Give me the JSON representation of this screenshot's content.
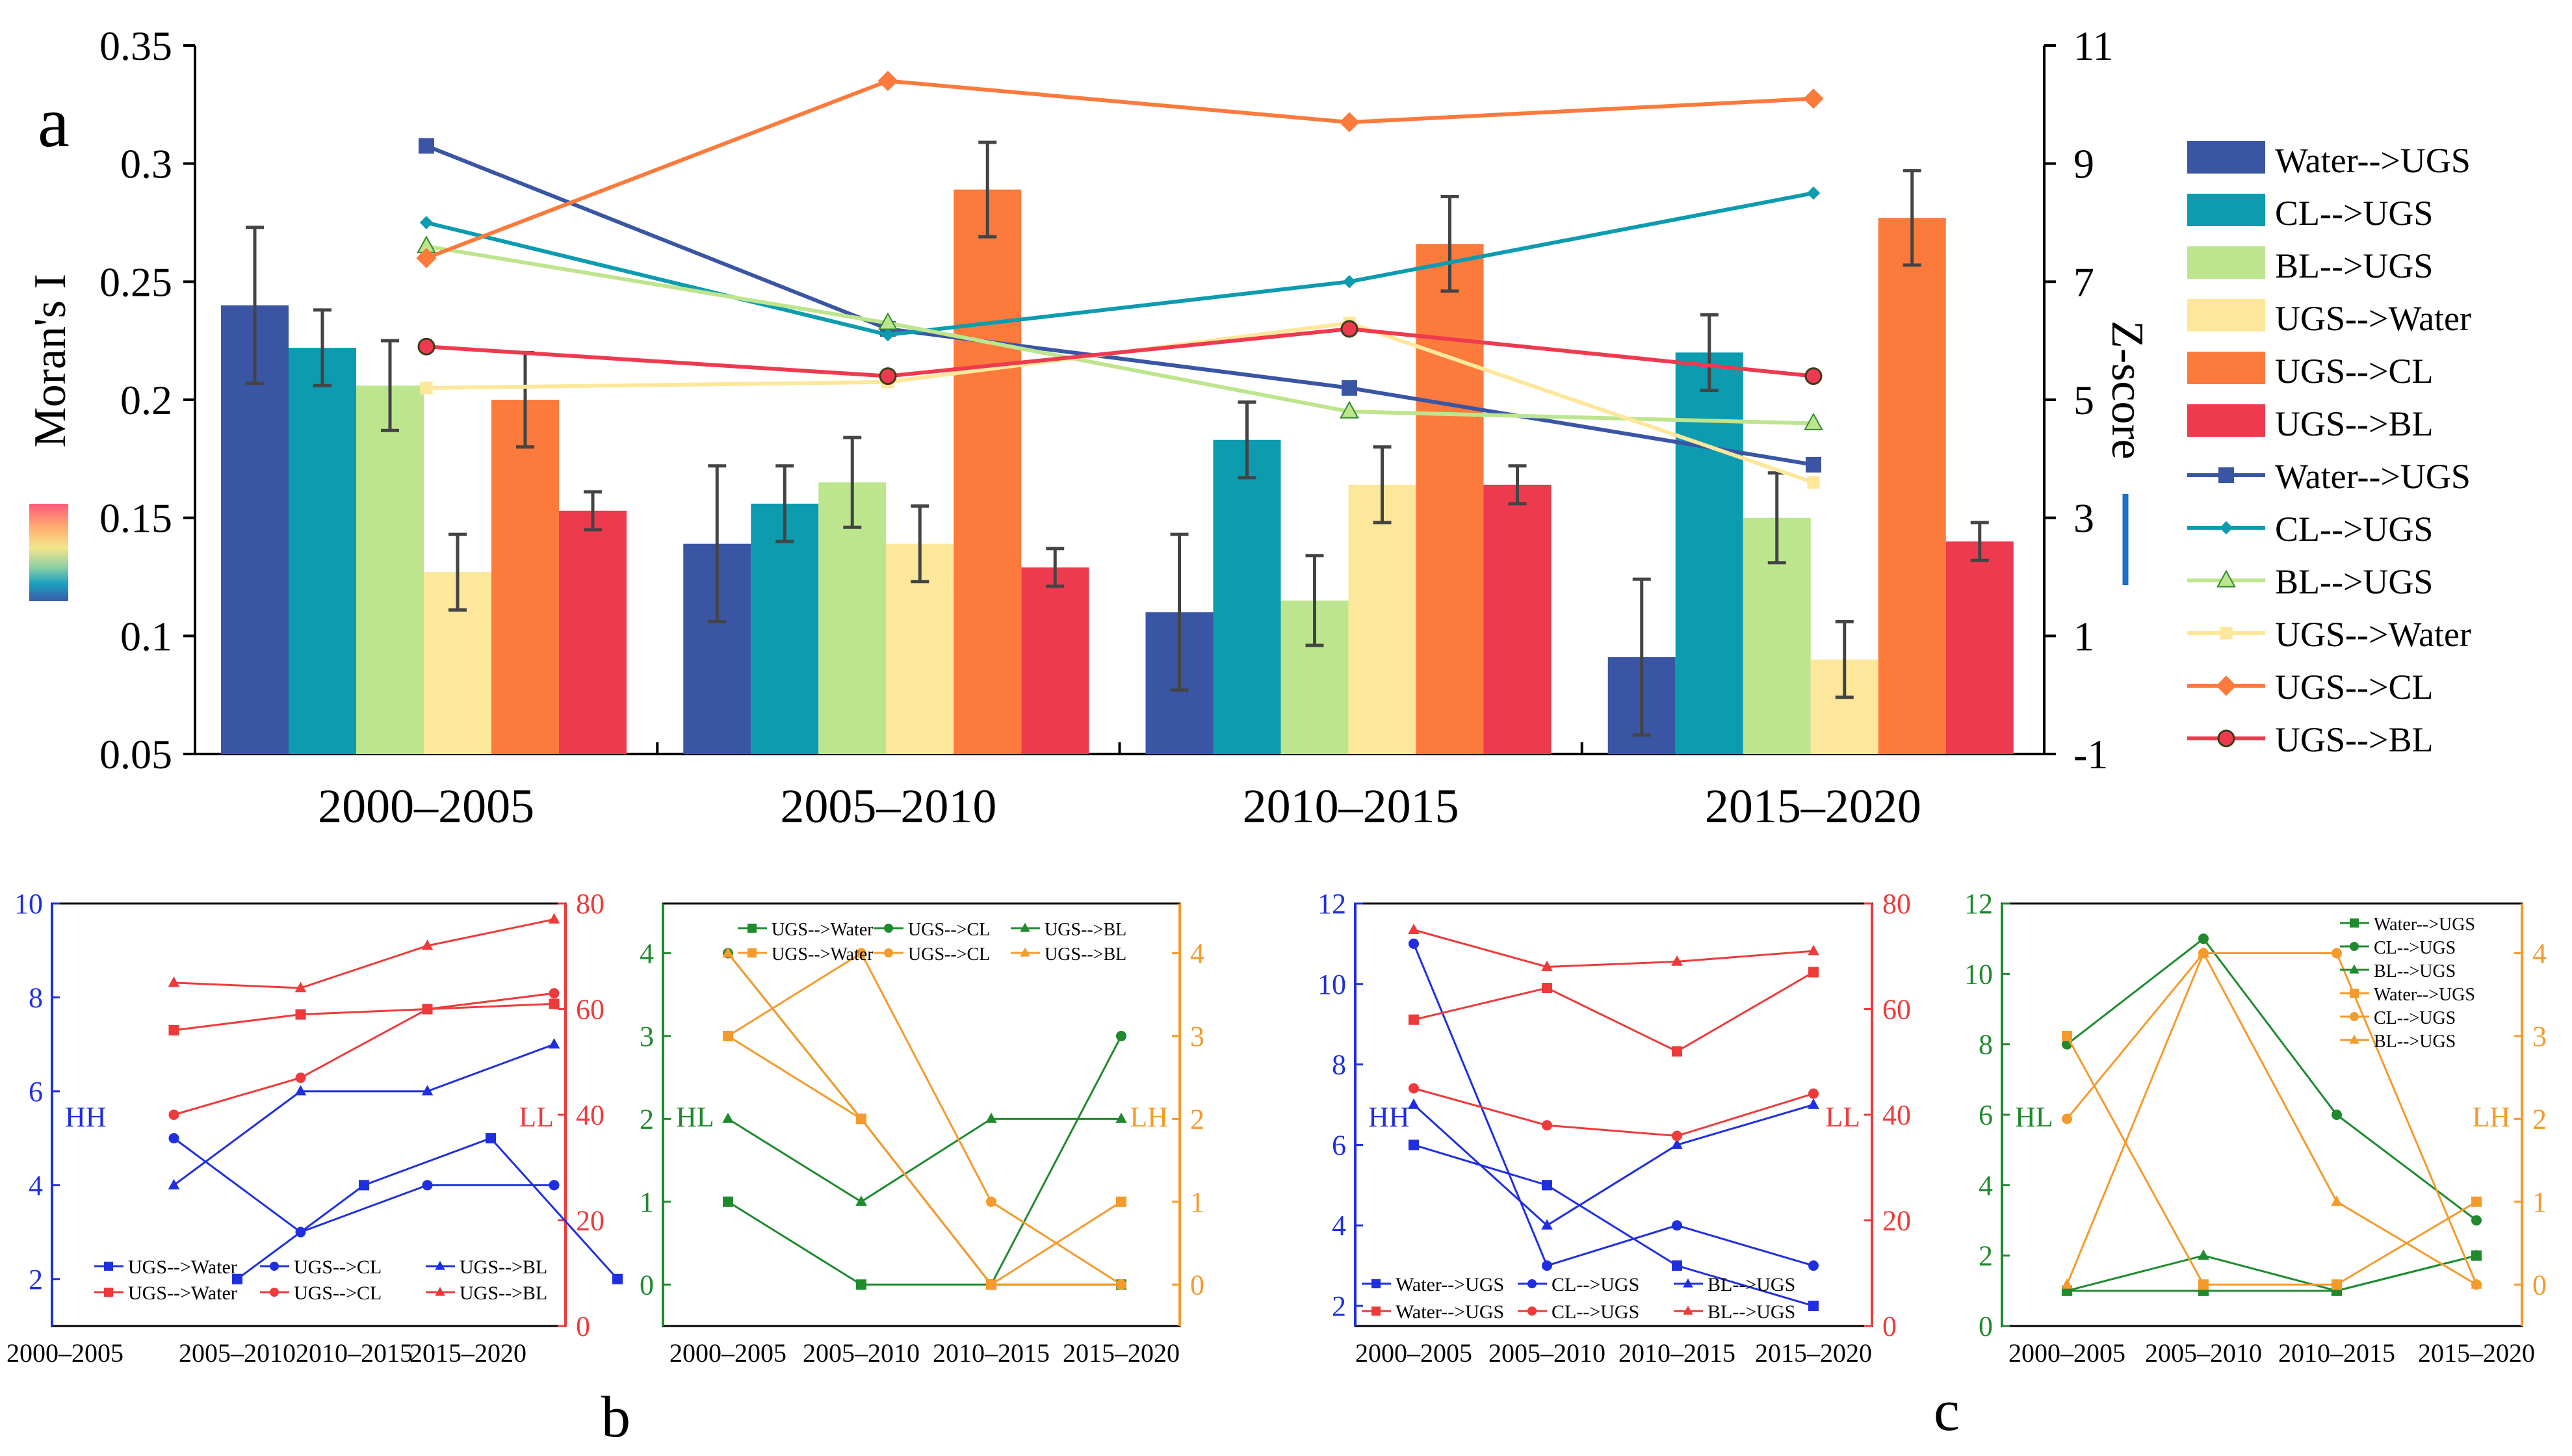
{
  "figure": {
    "panel_labels": {
      "a": "a",
      "b": "b",
      "c": "c"
    },
    "colors": {
      "water_ugs": "#3a55a4",
      "cl_ugs": "#0d9bb0",
      "bl_ugs": "#bde58e",
      "ugs_water": "#fde79a",
      "ugs_cl": "#fb7a3c",
      "ugs_bl": "#ee3a4f",
      "hh": "#1f2fe0",
      "ll": "#ee3a3a",
      "hl": "#1f8a2e",
      "lh": "#f59a2c",
      "errorbar": "#444444",
      "colorbar": [
        "#ff5a7a",
        "#ffb070",
        "#f4e58a",
        "#8fd0a5",
        "#1aa0c0",
        "#3a5aa8"
      ]
    }
  },
  "chart_data": [
    {
      "type": "bar",
      "panel": "a",
      "categories": [
        "2000–2005",
        "2005–2010",
        "2010–2015",
        "2015–2020"
      ],
      "ylabel": "Moran's I",
      "ylim": [
        0.05,
        0.35
      ],
      "yticks": [
        "0.05",
        "0.1",
        "0.15",
        "0.2",
        "0.25",
        "0.3",
        "0.35"
      ],
      "y2label": "Z-score",
      "y2lim": [
        -1,
        11
      ],
      "y2ticks": [
        "-1",
        "1",
        "3",
        "5",
        "7",
        "9",
        "11"
      ],
      "legend_position": "right",
      "series": [
        {
          "name": "Water-->UGS",
          "kind": "bar",
          "color_key": "water_ugs",
          "values": [
            0.24,
            0.139,
            0.11,
            0.091
          ],
          "errors": [
            0.033,
            0.033,
            0.033,
            0.033
          ]
        },
        {
          "name": "CL-->UGS",
          "kind": "bar",
          "color_key": "cl_ugs",
          "values": [
            0.222,
            0.156,
            0.183,
            0.22
          ],
          "errors": [
            0.016,
            0.016,
            0.016,
            0.016
          ]
        },
        {
          "name": "BL-->UGS",
          "kind": "bar",
          "color_key": "bl_ugs",
          "values": [
            0.206,
            0.165,
            0.115,
            0.15
          ],
          "errors": [
            0.019,
            0.019,
            0.019,
            0.019
          ]
        },
        {
          "name": "UGS-->Water",
          "kind": "bar",
          "color_key": "ugs_water",
          "values": [
            0.127,
            0.139,
            0.164,
            0.09
          ],
          "errors": [
            0.016,
            0.016,
            0.016,
            0.016
          ]
        },
        {
          "name": "UGS-->CL",
          "kind": "bar",
          "color_key": "ugs_cl",
          "values": [
            0.2,
            0.289,
            0.266,
            0.277
          ],
          "errors": [
            0.02,
            0.02,
            0.02,
            0.02
          ]
        },
        {
          "name": "UGS-->BL",
          "kind": "bar",
          "color_key": "ugs_bl",
          "values": [
            0.153,
            0.129,
            0.164,
            0.14
          ],
          "errors": [
            0.008,
            0.008,
            0.008,
            0.008
          ]
        },
        {
          "name": "Water-->UGS",
          "kind": "line",
          "axis": "right",
          "marker": "square",
          "color_key": "water_ugs",
          "values": [
            9.3,
            6.2,
            5.2,
            3.9
          ]
        },
        {
          "name": "CL-->UGS",
          "kind": "line",
          "axis": "right",
          "marker": "diamond-small",
          "color_key": "cl_ugs",
          "values": [
            8.0,
            6.1,
            7.0,
            8.5
          ]
        },
        {
          "name": "BL-->UGS",
          "kind": "line",
          "axis": "right",
          "marker": "triangle",
          "color_key": "bl_ugs",
          "values": [
            7.6,
            6.3,
            4.8,
            4.6
          ]
        },
        {
          "name": "UGS-->Water",
          "kind": "line",
          "axis": "right",
          "marker": "square-small",
          "color_key": "ugs_water",
          "values": [
            5.2,
            5.3,
            6.3,
            3.6
          ]
        },
        {
          "name": "UGS-->CL",
          "kind": "line",
          "axis": "right",
          "marker": "diamond",
          "color_key": "ugs_cl",
          "values": [
            7.4,
            10.4,
            9.7,
            10.1
          ]
        },
        {
          "name": "UGS-->BL",
          "kind": "line",
          "axis": "right",
          "marker": "circle",
          "color_key": "ugs_bl",
          "values": [
            5.9,
            5.4,
            6.2,
            5.4
          ]
        }
      ],
      "legend_labels": [
        "Water-->UGS",
        "CL-->UGS",
        "BL-->UGS",
        "UGS-->Water",
        "UGS-->CL",
        "UGS-->BL",
        "Water-->UGS",
        "CL-->UGS",
        "BL-->UGS",
        "UGS-->Water",
        "UGS-->CL",
        "UGS-->BL"
      ]
    },
    {
      "type": "line",
      "panel": "b-left",
      "x": [
        "2000–2005",
        "2005–2010",
        "2010–2015",
        "2015–2020"
      ],
      "xlabels": [
        "2000–2005",
        "2005–2010",
        "2010–2015",
        "2015–2020"
      ],
      "ylabel": "HH",
      "ylim": [
        1,
        10
      ],
      "yticks": [
        "2",
        "4",
        "6",
        "8",
        "10"
      ],
      "y2label": "LL",
      "y2lim": [
        0,
        80
      ],
      "y2ticks": [
        "0",
        "20",
        "40",
        "60",
        "80"
      ],
      "legend_position": "bottom",
      "series": [
        {
          "name": "UGS-->Water",
          "axis": "left",
          "color_key": "hh",
          "marker": "square",
          "points": [
            [
              1,
              2
            ],
            [
              2,
              4
            ],
            [
              3,
              5
            ],
            [
              4,
              2
            ]
          ]
        },
        {
          "name": "UGS-->CL",
          "axis": "left",
          "color_key": "hh",
          "marker": "circle",
          "points": [
            [
              0.5,
              5
            ],
            [
              1.5,
              3
            ],
            [
              2.5,
              4
            ],
            [
              3.5,
              4
            ]
          ]
        },
        {
          "name": "UGS-->BL",
          "axis": "left",
          "color_key": "hh",
          "marker": "triangle",
          "points": [
            [
              0.5,
              4
            ],
            [
              1.5,
              6
            ],
            [
              2.5,
              6
            ],
            [
              3.5,
              7
            ]
          ]
        },
        {
          "name": "UGS-->Water",
          "axis": "right",
          "color_key": "ll",
          "marker": "square",
          "points": [
            [
              0.5,
              56
            ],
            [
              1.5,
              59
            ],
            [
              2.5,
              60
            ],
            [
              3.5,
              61
            ]
          ]
        },
        {
          "name": "UGS-->CL",
          "axis": "right",
          "color_key": "ll",
          "marker": "circle",
          "points": [
            [
              0.5,
              40
            ],
            [
              1.5,
              47
            ],
            [
              2.5,
              60
            ],
            [
              3.5,
              63
            ]
          ]
        },
        {
          "name": "UGS-->BL",
          "axis": "right",
          "color_key": "ll",
          "marker": "triangle",
          "points": [
            [
              0.5,
              65
            ],
            [
              1.5,
              64
            ],
            [
              2.5,
              72
            ],
            [
              3.5,
              77
            ]
          ]
        }
      ]
    },
    {
      "type": "line",
      "panel": "b-right",
      "x": [
        "2000–2005",
        "2005–2010",
        "2010–2015",
        "2015–2020"
      ],
      "ylabel": "HL",
      "ylim": [
        -0.5,
        4.6
      ],
      "yticks": [
        "0",
        "1",
        "2",
        "3",
        "4"
      ],
      "y2label": "LH",
      "y2lim": [
        -0.5,
        4.6
      ],
      "y2ticks": [
        "0",
        "1",
        "2",
        "3",
        "4"
      ],
      "legend_position": "top",
      "series": [
        {
          "name": "UGS-->Water",
          "axis": "left",
          "color_key": "hl",
          "marker": "square",
          "values": [
            1,
            0,
            0,
            0
          ]
        },
        {
          "name": "UGS-->CL",
          "axis": "left",
          "color_key": "hl",
          "marker": "circle",
          "values": [
            4,
            2,
            0,
            3
          ]
        },
        {
          "name": "UGS-->BL",
          "axis": "left",
          "color_key": "hl",
          "marker": "triangle",
          "values": [
            2,
            1,
            2,
            2
          ]
        },
        {
          "name": "UGS-->Water",
          "axis": "right",
          "color_key": "lh",
          "marker": "square",
          "values": [
            3,
            2,
            0,
            1
          ]
        },
        {
          "name": "UGS-->CL",
          "axis": "right",
          "color_key": "lh",
          "marker": "circle",
          "values": [
            3,
            4,
            1,
            0
          ]
        },
        {
          "name": "UGS-->BL",
          "axis": "right",
          "color_key": "lh",
          "marker": "triangle",
          "values": [
            4,
            2,
            0,
            0
          ]
        }
      ]
    },
    {
      "type": "line",
      "panel": "c-left",
      "x": [
        "2000–2005",
        "2005–2010",
        "2010–2015",
        "2015–2020"
      ],
      "ylabel": "HH",
      "ylim": [
        1.5,
        12
      ],
      "yticks": [
        "2",
        "4",
        "6",
        "8",
        "10",
        "12"
      ],
      "y2label": "LL",
      "y2lim": [
        0,
        80
      ],
      "y2ticks": [
        "0",
        "20",
        "40",
        "60",
        "80"
      ],
      "legend_position": "bottom",
      "series": [
        {
          "name": "Water-->UGS",
          "axis": "left",
          "color_key": "hh",
          "marker": "square",
          "values": [
            6,
            5,
            3,
            2
          ]
        },
        {
          "name": "CL-->UGS",
          "axis": "left",
          "color_key": "hh",
          "marker": "circle",
          "values": [
            11,
            3,
            4,
            3
          ]
        },
        {
          "name": "BL-->UGS",
          "axis": "left",
          "color_key": "hh",
          "marker": "triangle",
          "values": [
            7,
            4,
            6,
            7
          ]
        },
        {
          "name": "Water-->UGS",
          "axis": "right",
          "color_key": "ll",
          "marker": "square",
          "values": [
            58,
            64,
            52,
            67
          ]
        },
        {
          "name": "CL-->UGS",
          "axis": "right",
          "color_key": "ll",
          "marker": "circle",
          "values": [
            45,
            38,
            36,
            44
          ]
        },
        {
          "name": "BL-->UGS",
          "axis": "right",
          "color_key": "ll",
          "marker": "triangle",
          "values": [
            75,
            68,
            69,
            71
          ]
        }
      ]
    },
    {
      "type": "line",
      "panel": "c-right",
      "x": [
        "2000–2005",
        "2005–2010",
        "2010–2015",
        "2015–2020"
      ],
      "ylabel": "HL",
      "ylim": [
        0,
        12
      ],
      "yticks": [
        "0",
        "2",
        "4",
        "6",
        "8",
        "10",
        "12"
      ],
      "y2label": "LH",
      "y2lim": [
        -0.5,
        4.6
      ],
      "y2ticks": [
        "0",
        "1",
        "2",
        "3",
        "4"
      ],
      "legend_position": "top-right",
      "series": [
        {
          "name": "Water-->UGS",
          "axis": "left",
          "color_key": "hl",
          "marker": "square",
          "values": [
            1,
            1,
            1,
            2
          ]
        },
        {
          "name": "CL-->UGS",
          "axis": "left",
          "color_key": "hl",
          "marker": "circle",
          "values": [
            8,
            11,
            6,
            3
          ]
        },
        {
          "name": "BL-->UGS",
          "axis": "left",
          "color_key": "hl",
          "marker": "triangle",
          "values": [
            1,
            2,
            1,
            2
          ]
        },
        {
          "name": "Water-->UGS",
          "axis": "right",
          "color_key": "lh",
          "marker": "square",
          "values": [
            3,
            0,
            0,
            1
          ]
        },
        {
          "name": "CL-->UGS",
          "axis": "right",
          "color_key": "lh",
          "marker": "circle",
          "values": [
            2,
            4,
            4,
            0
          ]
        },
        {
          "name": "BL-->UGS",
          "axis": "right",
          "color_key": "lh",
          "marker": "triangle",
          "values": [
            0,
            4,
            1,
            0
          ]
        }
      ]
    }
  ]
}
